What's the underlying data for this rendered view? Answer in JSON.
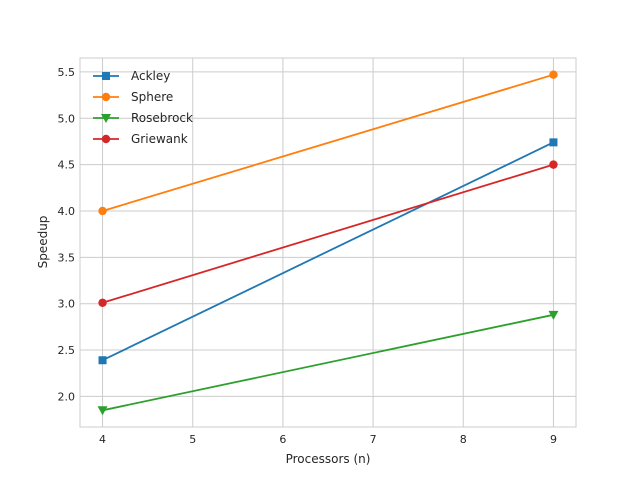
{
  "chart_data": {
    "type": "line",
    "xlabel": "Processors (n)",
    "ylabel": "Speedup",
    "xlim": [
      3.75,
      9.25
    ],
    "ylim": [
      1.67,
      5.65
    ],
    "xticks": [
      4,
      5,
      6,
      7,
      8,
      9
    ],
    "yticks": [
      2.0,
      2.5,
      3.0,
      3.5,
      4.0,
      4.5,
      5.0,
      5.5
    ],
    "xtick_labels": [
      "4",
      "5",
      "6",
      "7",
      "8",
      "9"
    ],
    "ytick_labels": [
      "2.0",
      "2.5",
      "3.0",
      "3.5",
      "4.0",
      "4.5",
      "5.0",
      "5.5"
    ],
    "grid": true,
    "legend_position": "top-left",
    "series": [
      {
        "name": "Ackley",
        "x": [
          4,
          9
        ],
        "y": [
          2.39,
          4.74
        ],
        "color": "#1f77b4",
        "marker": "square"
      },
      {
        "name": "Sphere",
        "x": [
          4,
          9
        ],
        "y": [
          4.0,
          5.47
        ],
        "color": "#ff7f0e",
        "marker": "circle"
      },
      {
        "name": "Rosebrock",
        "x": [
          4,
          9
        ],
        "y": [
          1.85,
          2.88
        ],
        "color": "#2ca02c",
        "marker": "triangle-down"
      },
      {
        "name": "Griewank",
        "x": [
          4,
          9
        ],
        "y": [
          3.01,
          4.5
        ],
        "color": "#d62728",
        "marker": "circle"
      }
    ]
  }
}
